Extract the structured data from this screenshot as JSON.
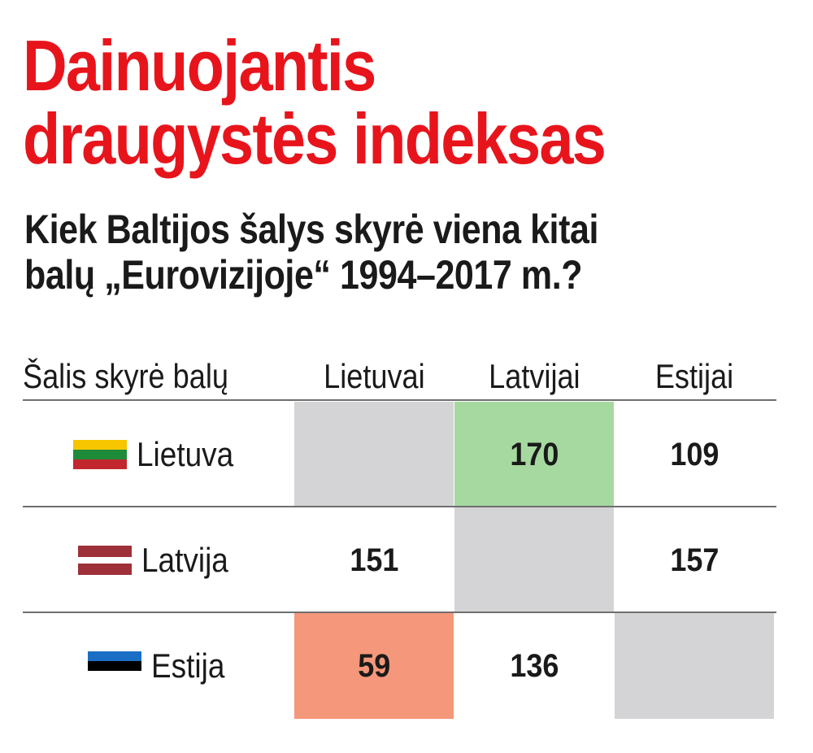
{
  "title_line1": "Dainuojantis",
  "title_line2": "draugystės indeksas",
  "subtitle_line1": "Kiek Baltijos šalys skyrė viena kitai",
  "subtitle_line2": "balų „Eurovizijoje“ 1994–2017 m.?",
  "chart_data": {
    "type": "table",
    "row_header": "Šalis skyrė balų",
    "columns": [
      "Lietuvai",
      "Latvijai",
      "Estijai"
    ],
    "rows": [
      {
        "name": "Lietuva",
        "flag_colors": [
          "#f7c600",
          "#1d8b3a",
          "#c1272d"
        ],
        "values": [
          null,
          "170",
          "109"
        ]
      },
      {
        "name": "Latvija",
        "flag_colors": [
          "#9e3039",
          "#ffffff",
          "#9e3039"
        ],
        "values": [
          "151",
          null,
          "157"
        ]
      },
      {
        "name": "Estija",
        "flag_colors": [
          "#1a6fc4",
          "#000000",
          "#ffffff"
        ],
        "values": [
          "59",
          "136",
          null
        ]
      }
    ],
    "highlights": {
      "max": "#a6d9a0",
      "min": "#f5977a",
      "self": "#d4d4d6"
    }
  }
}
